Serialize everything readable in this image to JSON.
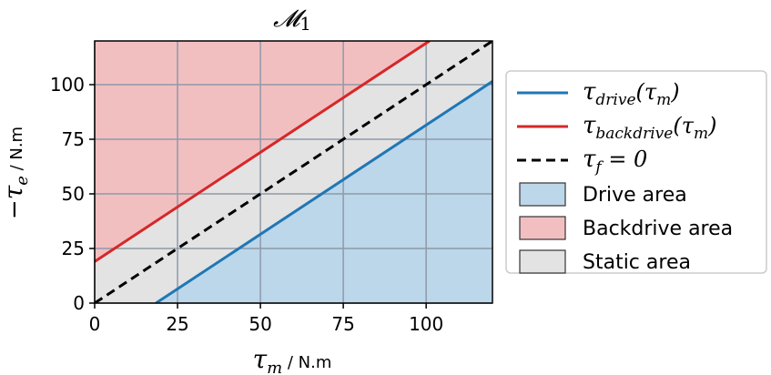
{
  "chart_data": {
    "type": "area",
    "title": "𝓜",
    "title_subscript": "1",
    "xlabel": {
      "symbol": "τ",
      "subscript": "m",
      "unit": " / N.m"
    },
    "ylabel": {
      "prefix": "−",
      "symbol": "τ",
      "subscript": "e",
      "unit": " / N.m"
    },
    "xlim": [
      0,
      120
    ],
    "ylim": [
      0,
      120
    ],
    "xticks": [
      0,
      25,
      50,
      75,
      100
    ],
    "yticks": [
      0,
      25,
      50,
      75,
      100
    ],
    "grid": true,
    "legend_position": "right-outside",
    "series": [
      {
        "kind": "line",
        "style": "solid",
        "color": "#1f77b4",
        "label": {
          "symbol": "τ",
          "sub": "drive",
          "arg": "(τ",
          "argsub": "m",
          "close": ")"
        },
        "points": [
          [
            18.5,
            0
          ],
          [
            120,
            101.5
          ]
        ]
      },
      {
        "kind": "line",
        "style": "solid",
        "color": "#d62728",
        "label": {
          "symbol": "τ",
          "sub": "backdrive",
          "arg": "(τ",
          "argsub": "m",
          "close": ")"
        },
        "points": [
          [
            0,
            19
          ],
          [
            101,
            120
          ]
        ]
      },
      {
        "kind": "line",
        "style": "dashed",
        "color": "#000000",
        "label": {
          "symbol": "τ",
          "sub": "f",
          "arg": " = 0",
          "argsub": "",
          "close": ""
        },
        "points": [
          [
            0,
            0
          ],
          [
            120,
            120
          ]
        ]
      }
    ],
    "areas": [
      {
        "name": "Drive area",
        "color": "#bcd6ea",
        "edge": "#1f77b4",
        "polygon": [
          [
            18.5,
            0
          ],
          [
            120,
            0
          ],
          [
            120,
            101.5
          ]
        ]
      },
      {
        "name": "Backdrive area",
        "color": "#f2bfc1",
        "edge": "#d62728",
        "polygon": [
          [
            0,
            19
          ],
          [
            0,
            120
          ],
          [
            101,
            120
          ]
        ]
      },
      {
        "name": "Static area",
        "color": "#e3e3e3",
        "edge": "#555555",
        "polygon": [
          [
            0,
            0
          ],
          [
            18.5,
            0
          ],
          [
            120,
            101.5
          ],
          [
            120,
            120
          ],
          [
            101,
            120
          ],
          [
            0,
            19
          ]
        ]
      }
    ]
  }
}
